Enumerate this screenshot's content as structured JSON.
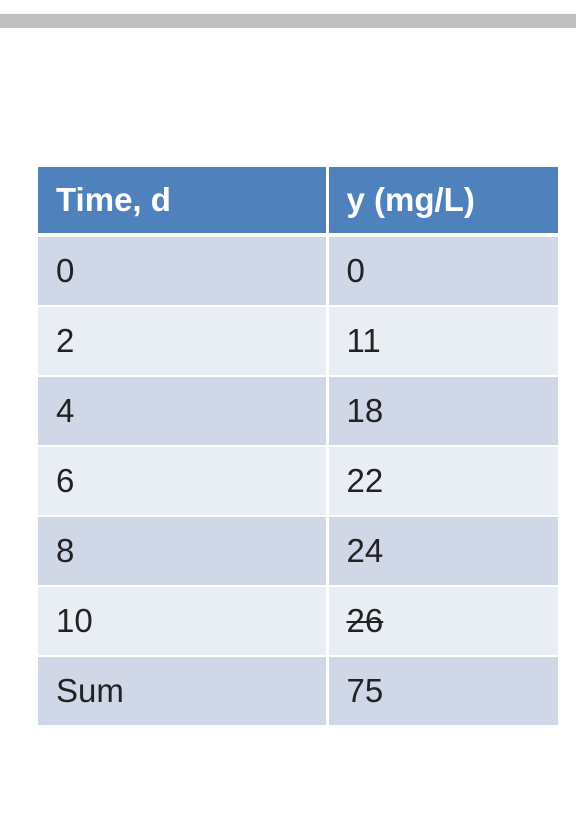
{
  "table": {
    "headers": [
      "Time, d",
      "y (mg/L)"
    ],
    "rows": [
      {
        "time": "0",
        "y": "0"
      },
      {
        "time": "2",
        "y": "11"
      },
      {
        "time": "4",
        "y": "18"
      },
      {
        "time": "6",
        "y": "22"
      },
      {
        "time": "8",
        "y": "24"
      },
      {
        "time": "10",
        "y": "26",
        "y_struck_through": true
      },
      {
        "time": "Sum",
        "y": "75"
      }
    ]
  },
  "colors": {
    "header_bg": "#4f81bd",
    "row_odd_bg": "#d0d8e8",
    "row_even_bg": "#e9edf4",
    "top_bar": "#bfbfbf"
  }
}
